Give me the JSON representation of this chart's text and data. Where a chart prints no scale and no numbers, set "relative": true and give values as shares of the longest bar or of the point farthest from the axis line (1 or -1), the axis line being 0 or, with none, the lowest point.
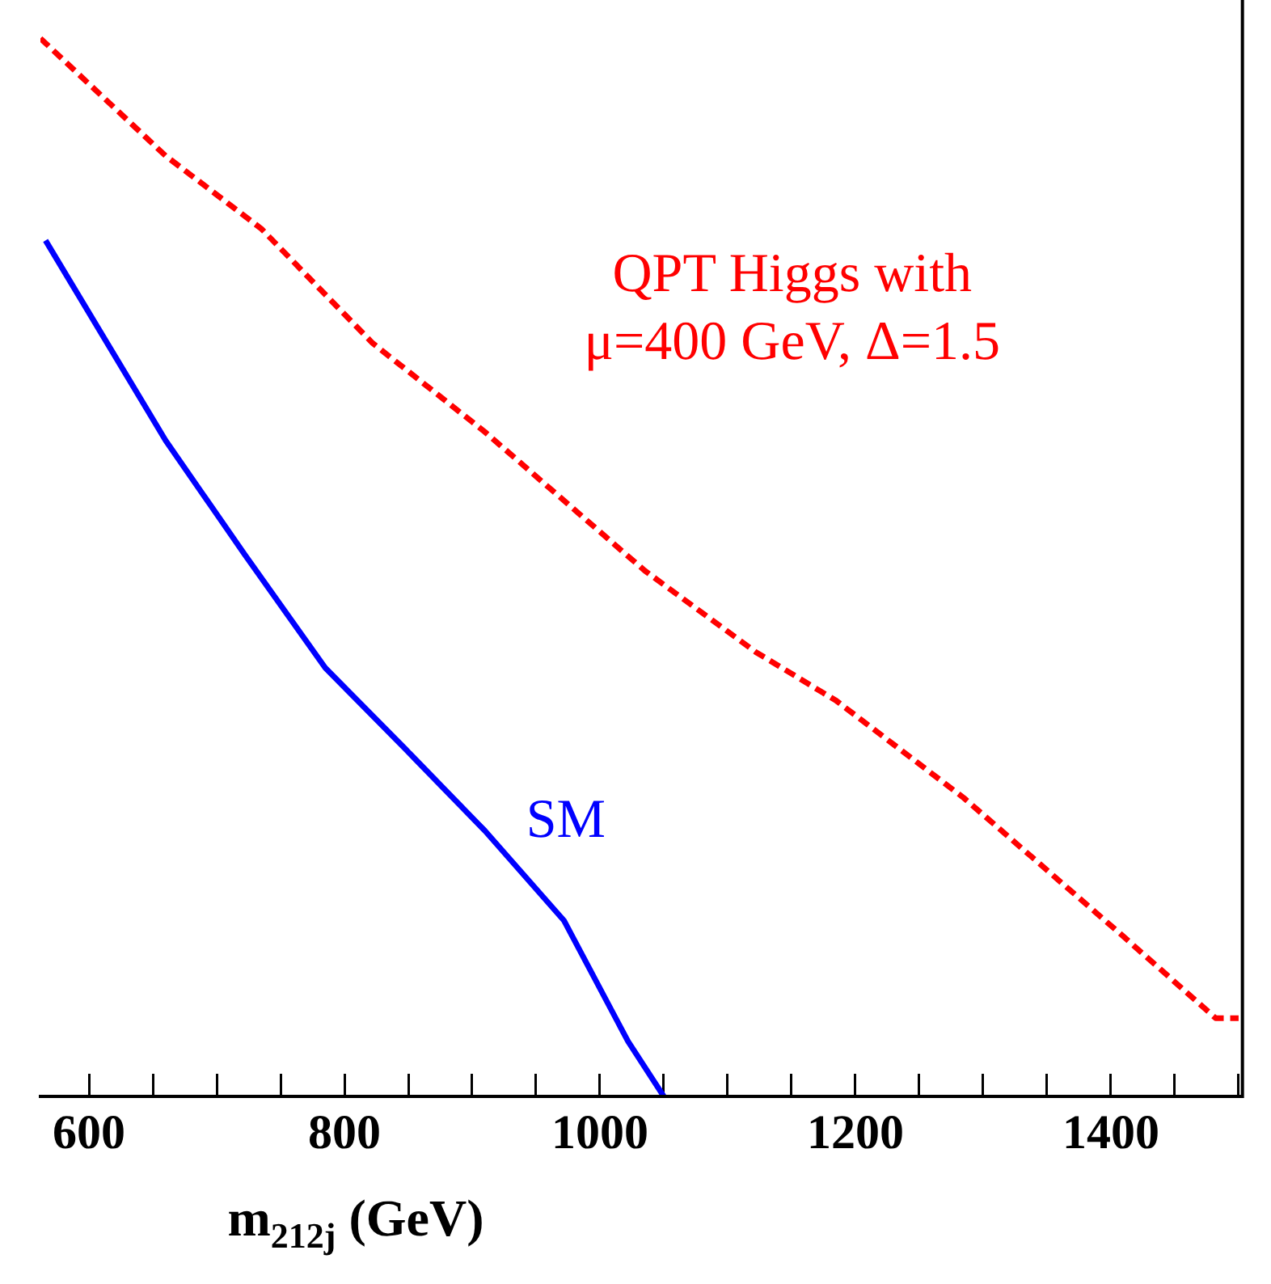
{
  "chart_data": {
    "type": "line",
    "relative": true,
    "xlabel": "m$_{212j}$ (GeV)",
    "xlim": [
      562,
      1503
    ],
    "xticks": [
      600,
      {
        "value": 650,
        "label": null
      },
      {
        "value": 700,
        "label": null
      },
      {
        "value": 750,
        "label": null
      },
      800,
      {
        "value": 850,
        "label": null
      },
      {
        "value": 900,
        "label": null
      },
      {
        "value": 950,
        "label": null
      },
      1000,
      {
        "value": 1050,
        "label": null
      },
      {
        "value": 1100,
        "label": null
      },
      {
        "value": 1150,
        "label": null
      },
      1200,
      {
        "value": 1250,
        "label": null
      },
      {
        "value": 1300,
        "label": null
      },
      {
        "value": 1350,
        "label": null
      },
      1400,
      {
        "value": 1450,
        "label": null
      },
      {
        "value": 1500,
        "label": null
      }
    ],
    "grid": false,
    "legend": false,
    "series": [
      {
        "name": "QPT Higgs with μ=400 GeV, Δ=1.5",
        "color": "#ff0000",
        "line_style": "dashed",
        "x": [
          562,
          660,
          735,
          822,
          910,
          1035,
          1122,
          1185,
          1285,
          1410,
          1482,
          1500
        ],
        "values": [
          1.0,
          0.889,
          0.82,
          0.712,
          0.628,
          0.497,
          0.42,
          0.374,
          0.282,
          0.151,
          0.074,
          0.074
        ]
      },
      {
        "name": "SM",
        "color": "#0000ff",
        "line_style": "solid",
        "x": [
          566,
          660,
          722,
          785,
          848,
          910,
          972,
          1022,
          1050
        ],
        "values": [
          0.809,
          0.62,
          0.512,
          0.405,
          0.328,
          0.251,
          0.166,
          0.052,
          0.0
        ]
      }
    ]
  }
}
